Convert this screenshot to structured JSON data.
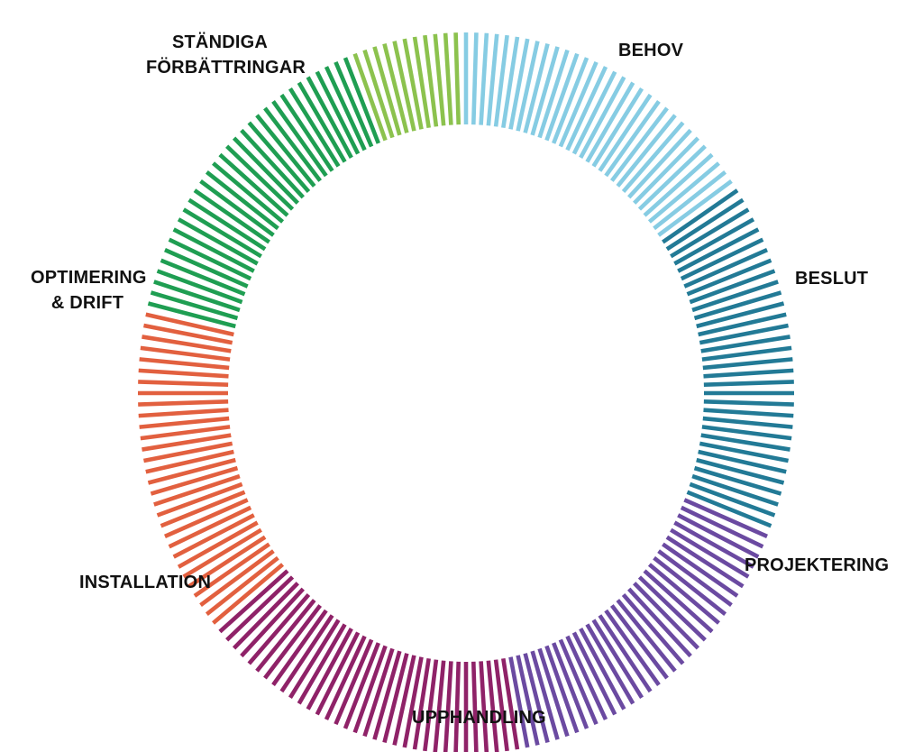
{
  "cycle": {
    "phases": [
      {
        "id": "behov",
        "lines": [
          "BEHOV"
        ],
        "color": "#86cce3"
      },
      {
        "id": "beslut",
        "lines": [
          "BESLUT"
        ],
        "color": "#227a96"
      },
      {
        "id": "projektering",
        "lines": [
          "PROJEKTERING"
        ],
        "color": "#6b4aa1"
      },
      {
        "id": "upphandling",
        "lines": [
          "UPPHANDLING"
        ],
        "color": "#8f2268"
      },
      {
        "id": "installation",
        "lines": [
          "INSTALLATION"
        ],
        "color": "#e2603f"
      },
      {
        "id": "optimering",
        "lines": [
          "OPTIMERING",
          "& DRIFT"
        ],
        "color": "#1f9e52"
      },
      {
        "id": "standiga",
        "lines": [
          "STÄNDIGA",
          "FÖRBÄTTRINGAR"
        ],
        "color": "#8cc24e"
      }
    ]
  }
}
